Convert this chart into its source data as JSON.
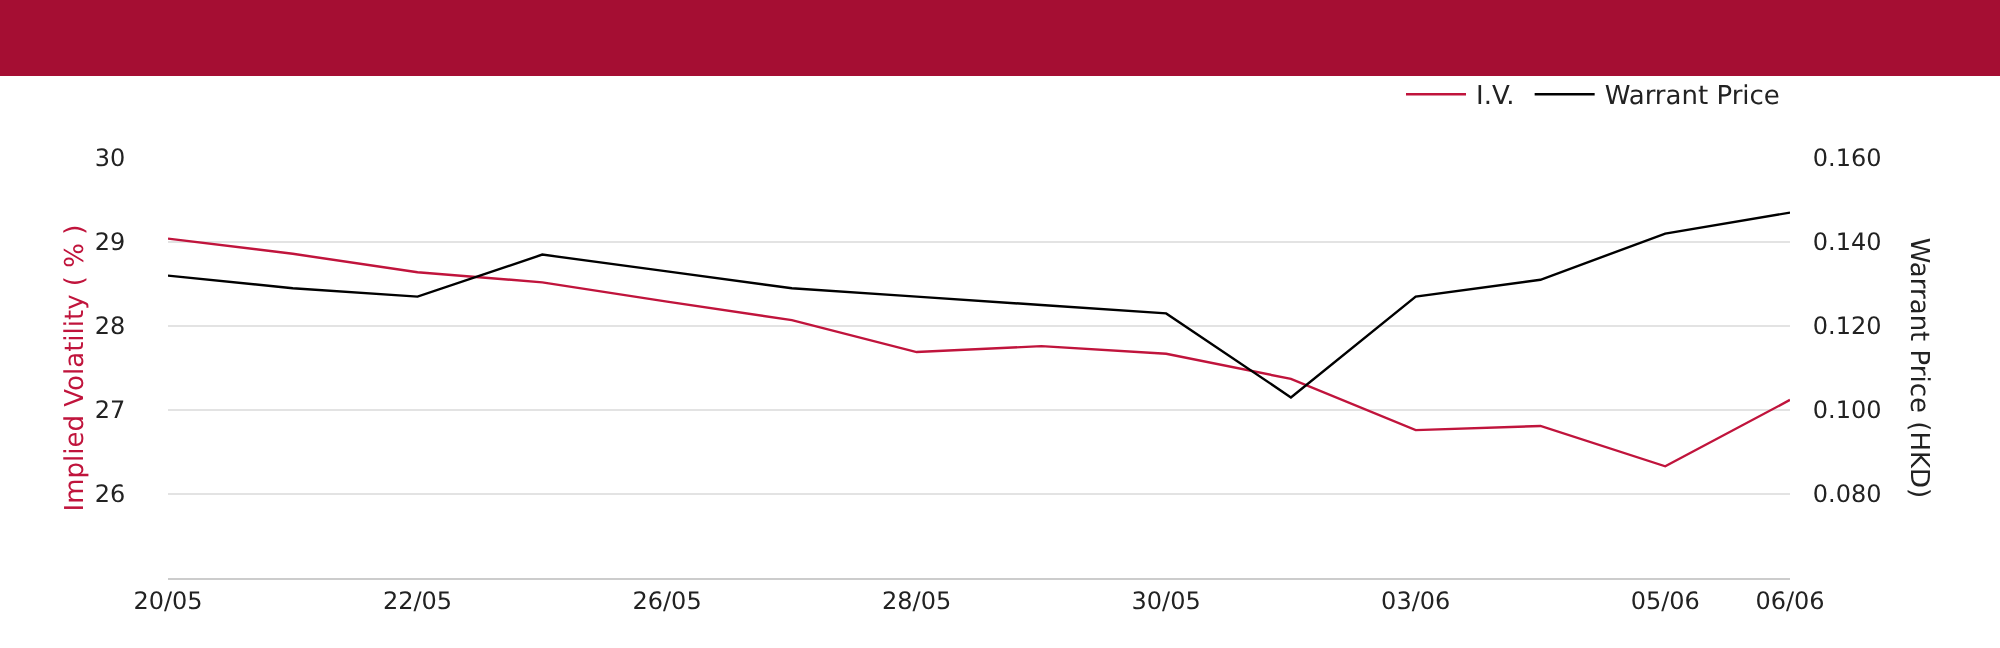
{
  "chart_data": {
    "type": "line",
    "categories": [
      "20/05",
      null,
      "22/05",
      null,
      "26/05",
      null,
      "28/05",
      null,
      "30/05",
      null,
      "03/06",
      null,
      "05/06",
      "06/06"
    ],
    "series": [
      {
        "name": "I.V.",
        "color": "#c0143c",
        "values": [
          29.04,
          28.86,
          28.64,
          28.52,
          28.29,
          28.07,
          27.69,
          27.76,
          27.67,
          27.37,
          26.76,
          26.81,
          26.33,
          27.12
        ]
      },
      {
        "name": "Warrant Price",
        "color": "#000000",
        "axis": "y2",
        "values": [
          0.132,
          0.129,
          0.127,
          0.137,
          0.133,
          0.129,
          0.127,
          0.125,
          0.123,
          0.103,
          0.127,
          0.131,
          0.142,
          0.147
        ]
      }
    ],
    "ylabel": "Implied Volatility ( % )",
    "y2label": "Warrant Price (HKD)",
    "ylim": [
      25,
      30
    ],
    "yticks": [
      26,
      27,
      28,
      29,
      30
    ],
    "y2lim": [
      0.06,
      0.16
    ],
    "y2ticks": [
      {
        "value": 0.08,
        "label": "0.080"
      },
      {
        "value": 0.1,
        "label": "0.100"
      },
      {
        "value": 0.12,
        "label": "0.120"
      },
      {
        "value": 0.14,
        "label": "0.140"
      },
      {
        "value": 0.16,
        "label": "0.160"
      }
    ],
    "grid": "y",
    "legend": "top right",
    "marker": "none",
    "line_style": "solid"
  }
}
